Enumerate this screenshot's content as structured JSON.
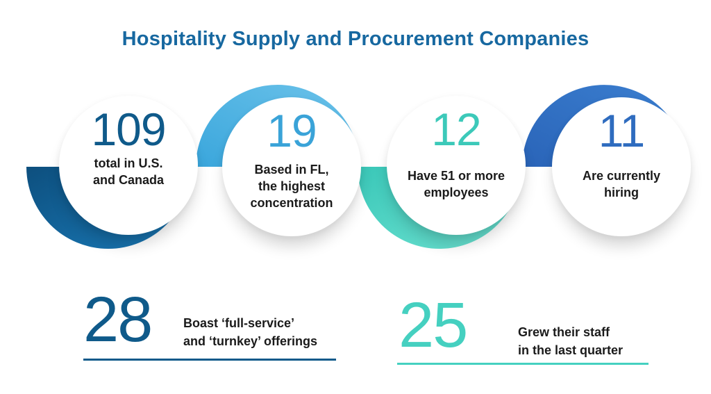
{
  "title": "Hospitality Supply and Procurement Companies",
  "colors": {
    "title": "#1768a0",
    "navy": "#0f5a8a",
    "sky": "#3aa3d8",
    "teal": "#45d0c0",
    "royal": "#2f6cbf"
  },
  "circles": [
    {
      "number": "109",
      "line1": "total in U.S.",
      "line2": "and Canada",
      "line3": ""
    },
    {
      "number": "19",
      "line1": "Based in FL,",
      "line2": "the highest",
      "line3": "concentration"
    },
    {
      "number": "12",
      "line1": "Have 51 or more",
      "line2": "employees",
      "line3": ""
    },
    {
      "number": "11",
      "line1": "Are currently",
      "line2": "hiring",
      "line3": ""
    }
  ],
  "stats": [
    {
      "number": "28",
      "line1": "Boast ‘full-service’",
      "line2": "and ‘turnkey’ offerings"
    },
    {
      "number": "25",
      "line1": "Grew their staff",
      "line2": "in the last quarter"
    }
  ]
}
